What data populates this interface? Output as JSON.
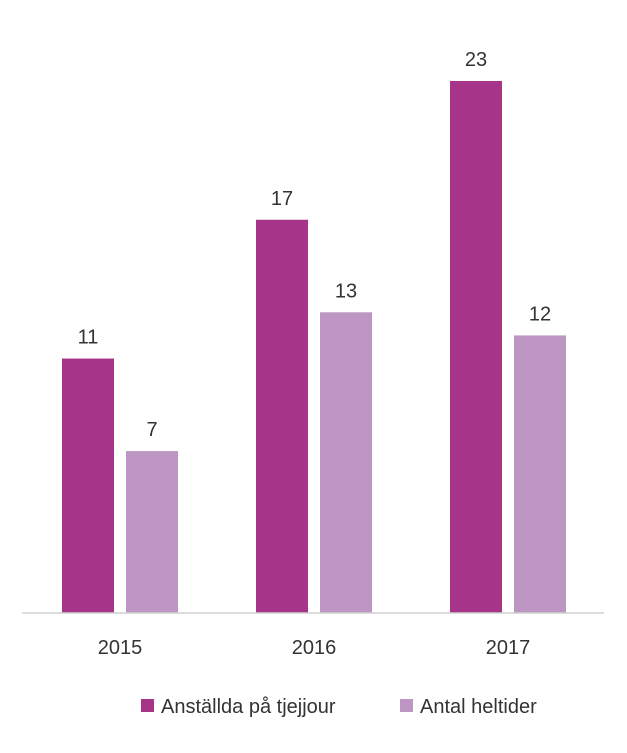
{
  "chart_data": {
    "type": "bar",
    "categories": [
      "2015",
      "2016",
      "2017"
    ],
    "series": [
      {
        "name": "Anställda på tjejjour",
        "values": [
          11,
          17,
          23
        ],
        "color": "#A6358A"
      },
      {
        "name": "Antal heltider",
        "values": [
          7,
          13,
          12
        ],
        "color": "#BE96C4"
      }
    ],
    "ylim": [
      0,
      26.5
    ],
    "grid": false,
    "legend_position": "bottom",
    "data_labels": true
  }
}
